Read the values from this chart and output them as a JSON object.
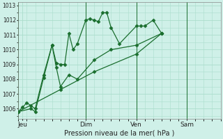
{
  "background_color": "#cff0e8",
  "grid_color": "#aaddcc",
  "line_color": "#1a6e2e",
  "xlabel": "Pression niveau de la mer( hPa )",
  "ylim": [
    1005.3,
    1013.2
  ],
  "yticks": [
    1006,
    1007,
    1008,
    1009,
    1010,
    1011,
    1012,
    1013
  ],
  "xlim": [
    0,
    24
  ],
  "vlines": [
    0,
    8,
    14,
    20
  ],
  "xtick_positions": [
    0.5,
    8,
    14,
    20
  ],
  "xtick_labels": [
    "Jeu",
    "Dim",
    "Ven",
    "Sam"
  ],
  "series1": [
    [
      0,
      1005.8
    ],
    [
      0.5,
      1006.1
    ],
    [
      1,
      1006.4
    ],
    [
      1.5,
      1006.2
    ],
    [
      2,
      1006.0
    ],
    [
      3,
      1008.3
    ],
    [
      4,
      1010.3
    ],
    [
      4.5,
      1009.1
    ],
    [
      5,
      1009.0
    ],
    [
      5.5,
      1009.0
    ],
    [
      6,
      1011.1
    ],
    [
      6.5,
      1010.0
    ],
    [
      7,
      1010.4
    ],
    [
      8,
      1012.0
    ],
    [
      8.5,
      1012.1
    ],
    [
      9,
      1012.0
    ],
    [
      9.5,
      1011.9
    ],
    [
      10,
      1012.5
    ],
    [
      10.5,
      1012.5
    ],
    [
      11,
      1011.5
    ],
    [
      12,
      1010.4
    ],
    [
      14,
      1011.6
    ],
    [
      14.5,
      1011.6
    ],
    [
      15,
      1011.6
    ],
    [
      16,
      1012.0
    ],
    [
      17,
      1011.1
    ]
  ],
  "series2": [
    [
      0,
      1005.8
    ],
    [
      1.5,
      1006.0
    ],
    [
      2,
      1005.8
    ],
    [
      3,
      1008.1
    ],
    [
      4,
      1010.3
    ],
    [
      4.5,
      1008.8
    ],
    [
      5,
      1007.5
    ],
    [
      6,
      1008.3
    ],
    [
      7,
      1008.0
    ],
    [
      9,
      1009.3
    ],
    [
      11,
      1010.0
    ],
    [
      14,
      1010.3
    ],
    [
      17,
      1011.1
    ]
  ],
  "series3": [
    [
      0,
      1005.8
    ],
    [
      5,
      1007.3
    ],
    [
      9,
      1008.5
    ],
    [
      14,
      1009.7
    ],
    [
      17,
      1011.1
    ]
  ]
}
